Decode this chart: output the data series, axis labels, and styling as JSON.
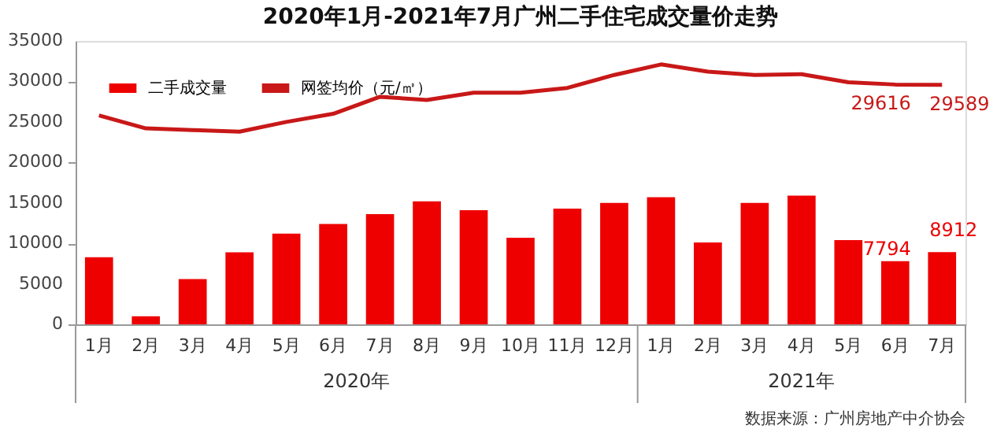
{
  "chart_data": {
    "type": "bar",
    "title": "2020年1月-2021年7月广州二手住宅成交量价走势",
    "categories": [
      "1月",
      "2月",
      "3月",
      "4月",
      "5月",
      "6月",
      "7月",
      "8月",
      "9月",
      "10月",
      "11月",
      "12月",
      "1月",
      "2月",
      "3月",
      "4月",
      "5月",
      "6月",
      "7月"
    ],
    "series": [
      {
        "name": "二手成交量",
        "color": "#ee0000",
        "values": [
          8300,
          1000,
          5600,
          8900,
          11200,
          12400,
          13600,
          15200,
          14100,
          10700,
          14300,
          15000,
          15700,
          10100,
          15000,
          15900,
          10400,
          7794,
          8912
        ],
        "value_labels": [
          null,
          null,
          null,
          null,
          null,
          null,
          null,
          null,
          null,
          null,
          null,
          null,
          null,
          null,
          null,
          null,
          null,
          "7794",
          "8912"
        ]
      },
      {
        "name": "网签均价（元/㎡）",
        "type": "line",
        "color": "#c81818",
        "values": [
          25800,
          24200,
          24000,
          23800,
          25000,
          26000,
          28100,
          27700,
          28600,
          28600,
          29200,
          30800,
          32100,
          31200,
          30800,
          30900,
          29900,
          29616,
          29589
        ],
        "value_labels": [
          null,
          null,
          null,
          null,
          null,
          null,
          null,
          null,
          null,
          null,
          null,
          null,
          null,
          null,
          null,
          null,
          null,
          "29616",
          "29589"
        ]
      }
    ],
    "ylim": [
      0,
      35000
    ],
    "yticks": [
      0,
      5000,
      10000,
      15000,
      20000,
      25000,
      30000,
      35000
    ],
    "grid": false,
    "legend": "top left",
    "annotations": [
      "2020年",
      "2021年",
      "数据来源：广州房地产中介协会"
    ]
  }
}
